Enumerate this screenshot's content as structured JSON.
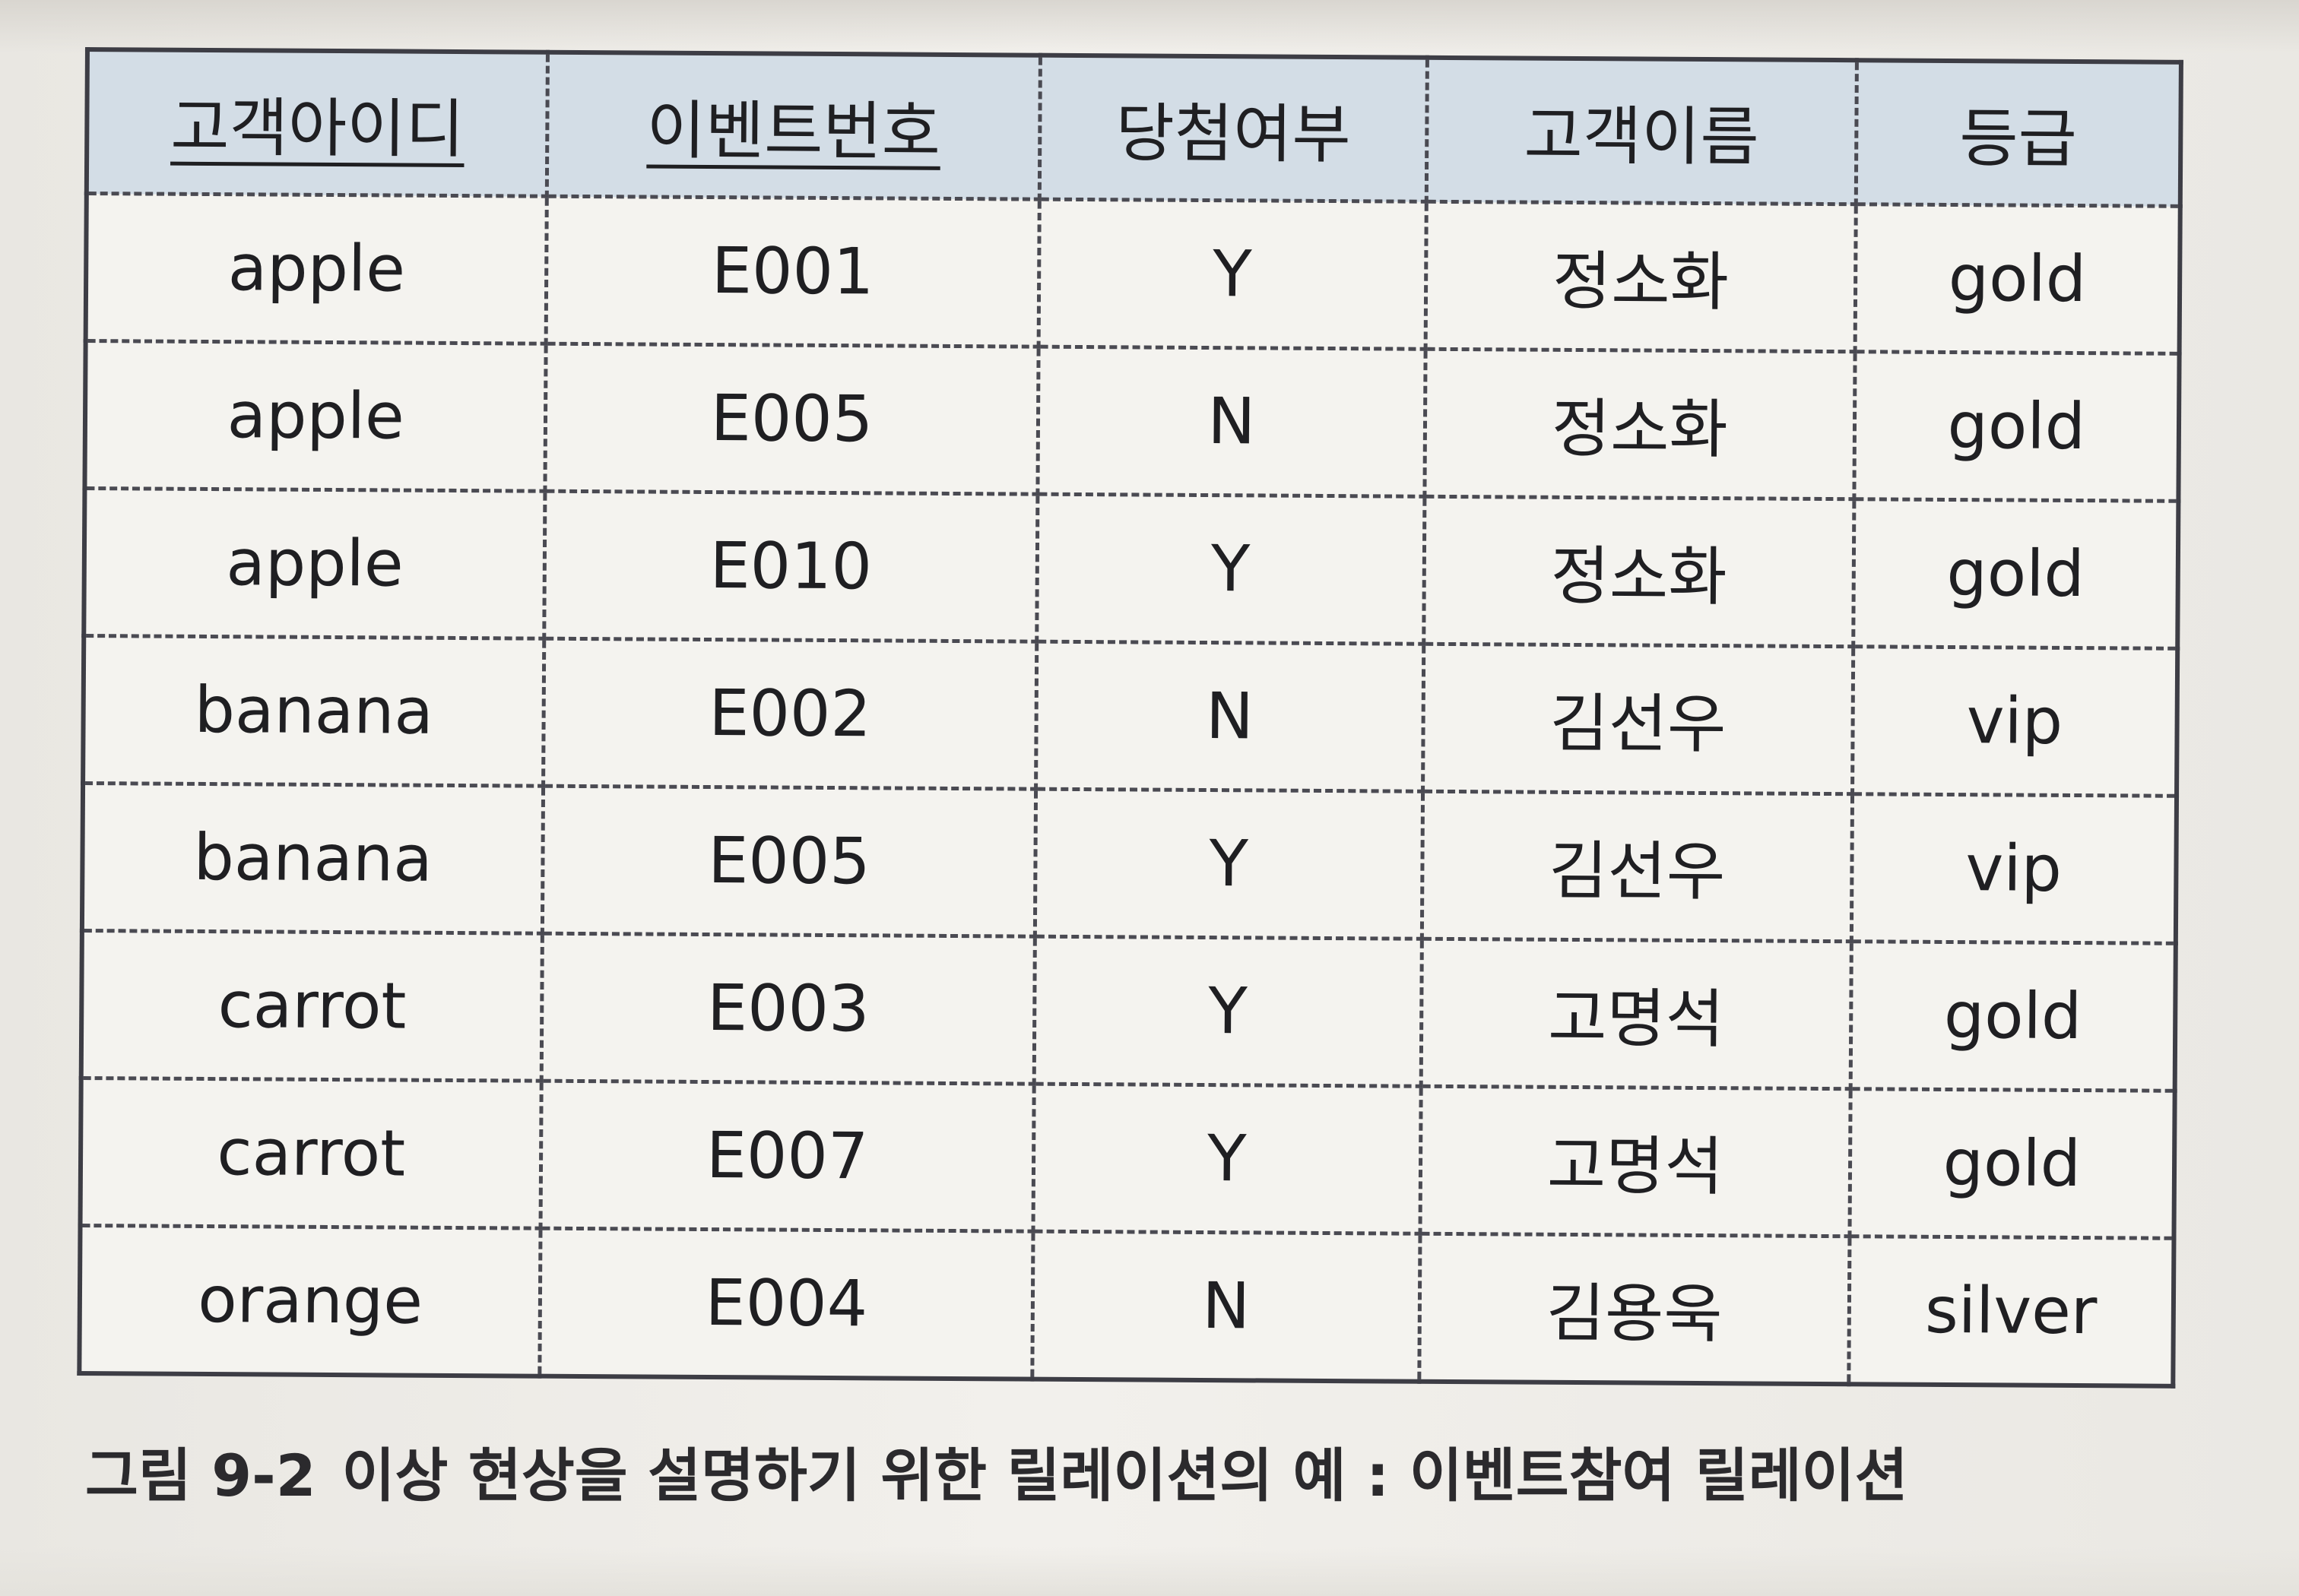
{
  "table": {
    "headers": [
      {
        "label": "고객아이디",
        "key": true
      },
      {
        "label": "이벤트번호",
        "key": true
      },
      {
        "label": "당첨여부",
        "key": false
      },
      {
        "label": "고객이름",
        "key": false
      },
      {
        "label": "등급",
        "key": false
      }
    ],
    "rows": [
      [
        "apple",
        "E001",
        "Y",
        "정소화",
        "gold"
      ],
      [
        "apple",
        "E005",
        "N",
        "정소화",
        "gold"
      ],
      [
        "apple",
        "E010",
        "Y",
        "정소화",
        "gold"
      ],
      [
        "banana",
        "E002",
        "N",
        "김선우",
        "vip"
      ],
      [
        "banana",
        "E005",
        "Y",
        "김선우",
        "vip"
      ],
      [
        "carrot",
        "E003",
        "Y",
        "고명석",
        "gold"
      ],
      [
        "carrot",
        "E007",
        "Y",
        "고명석",
        "gold"
      ],
      [
        "orange",
        "E004",
        "N",
        "김용욱",
        "silver"
      ]
    ]
  },
  "caption": {
    "figure_number": "그림 9-2",
    "text": "이상 현상을 설명하기 위한 릴레이션의 예 : 이벤트참여 릴레이션"
  }
}
